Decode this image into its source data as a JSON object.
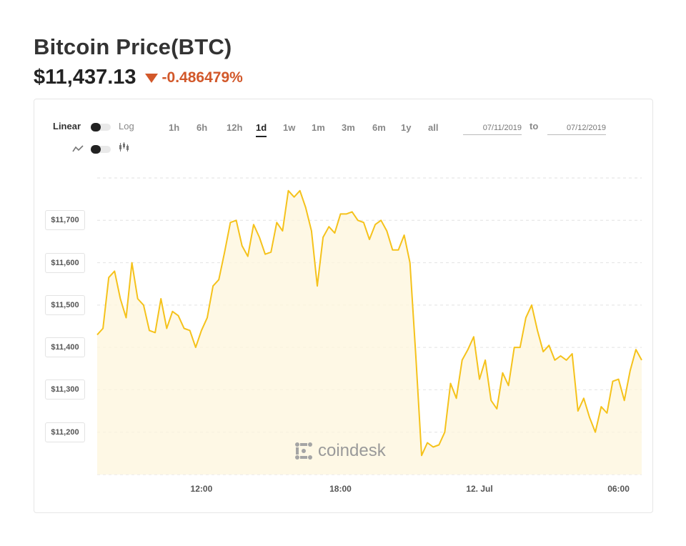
{
  "header": {
    "title": "Bitcoin Price(BTC)",
    "price": "$11,437.13",
    "change": "-0.486479%",
    "change_color": "#d2582a"
  },
  "controls": {
    "scale_left": "Linear",
    "scale_right": "Log",
    "type_left_icon": "line-chart-icon",
    "type_right_icon": "candlestick-icon",
    "ranges": [
      "1h",
      "6h",
      "12h",
      "1d",
      "1w",
      "1m",
      "3m",
      "6m",
      "1y",
      "all"
    ],
    "active_range": "1d",
    "date_from": "07/11/2019",
    "date_to_label": "to",
    "date_to": "07/12/2019"
  },
  "watermark": "coindesk",
  "chart_data": {
    "type": "area",
    "line_color": "#f5c21b",
    "fill_color": "#fdf5dc",
    "y_ticks": [
      "$11,200",
      "$11,300",
      "$11,400",
      "$11,500",
      "$11,600",
      "$11,700"
    ],
    "y_tick_values": [
      11200,
      11300,
      11400,
      11500,
      11600,
      11700
    ],
    "x_ticks": [
      "12:00",
      "18:00",
      "12. Jul",
      "06:00"
    ],
    "x_tick_hours": [
      12,
      18,
      24,
      30
    ],
    "x_start_hour": 7.5,
    "x_end_hour": 31,
    "ylim": [
      11100,
      11800
    ],
    "grid": true,
    "series": [
      {
        "points": [
          [
            7.5,
            11430
          ],
          [
            7.75,
            11445
          ],
          [
            8.0,
            11565
          ],
          [
            8.25,
            11580
          ],
          [
            8.5,
            11515
          ],
          [
            8.75,
            11470
          ],
          [
            9.0,
            11600
          ],
          [
            9.25,
            11515
          ],
          [
            9.5,
            11500
          ],
          [
            9.75,
            11440
          ],
          [
            10.0,
            11435
          ],
          [
            10.25,
            11515
          ],
          [
            10.5,
            11445
          ],
          [
            10.75,
            11485
          ],
          [
            11.0,
            11475
          ],
          [
            11.25,
            11445
          ],
          [
            11.5,
            11440
          ],
          [
            11.75,
            11400
          ],
          [
            12.0,
            11440
          ],
          [
            12.25,
            11470
          ],
          [
            12.5,
            11545
          ],
          [
            12.75,
            11560
          ],
          [
            13.0,
            11625
          ],
          [
            13.25,
            11695
          ],
          [
            13.5,
            11700
          ],
          [
            13.75,
            11640
          ],
          [
            14.0,
            11615
          ],
          [
            14.25,
            11690
          ],
          [
            14.5,
            11660
          ],
          [
            14.75,
            11620
          ],
          [
            15.0,
            11625
          ],
          [
            15.25,
            11695
          ],
          [
            15.5,
            11675
          ],
          [
            15.75,
            11770
          ],
          [
            16.0,
            11755
          ],
          [
            16.25,
            11770
          ],
          [
            16.5,
            11730
          ],
          [
            16.75,
            11675
          ],
          [
            17.0,
            11545
          ],
          [
            17.25,
            11660
          ],
          [
            17.5,
            11685
          ],
          [
            17.75,
            11670
          ],
          [
            18.0,
            11715
          ],
          [
            18.25,
            11715
          ],
          [
            18.5,
            11720
          ],
          [
            18.75,
            11700
          ],
          [
            19.0,
            11695
          ],
          [
            19.25,
            11655
          ],
          [
            19.5,
            11690
          ],
          [
            19.75,
            11700
          ],
          [
            20.0,
            11675
          ],
          [
            20.25,
            11630
          ],
          [
            20.5,
            11630
          ],
          [
            20.75,
            11665
          ],
          [
            21.0,
            11600
          ],
          [
            21.25,
            11380
          ],
          [
            21.5,
            11145
          ],
          [
            21.75,
            11175
          ],
          [
            22.0,
            11165
          ],
          [
            22.25,
            11170
          ],
          [
            22.5,
            11200
          ],
          [
            22.75,
            11315
          ],
          [
            23.0,
            11280
          ],
          [
            23.25,
            11370
          ],
          [
            23.5,
            11395
          ],
          [
            23.75,
            11425
          ],
          [
            24.0,
            11325
          ],
          [
            24.25,
            11370
          ],
          [
            24.5,
            11275
          ],
          [
            24.75,
            11255
          ],
          [
            25.0,
            11340
          ],
          [
            25.25,
            11310
          ],
          [
            25.5,
            11400
          ],
          [
            25.75,
            11400
          ],
          [
            26.0,
            11470
          ],
          [
            26.25,
            11500
          ],
          [
            26.5,
            11440
          ],
          [
            26.75,
            11390
          ],
          [
            27.0,
            11405
          ],
          [
            27.25,
            11370
          ],
          [
            27.5,
            11380
          ],
          [
            27.75,
            11370
          ],
          [
            28.0,
            11385
          ],
          [
            28.25,
            11250
          ],
          [
            28.5,
            11280
          ],
          [
            28.75,
            11235
          ],
          [
            29.0,
            11200
          ],
          [
            29.25,
            11260
          ],
          [
            29.5,
            11245
          ],
          [
            29.75,
            11320
          ],
          [
            30.0,
            11325
          ],
          [
            30.25,
            11275
          ],
          [
            30.5,
            11345
          ],
          [
            30.75,
            11395
          ],
          [
            31.0,
            11370
          ]
        ]
      }
    ]
  }
}
